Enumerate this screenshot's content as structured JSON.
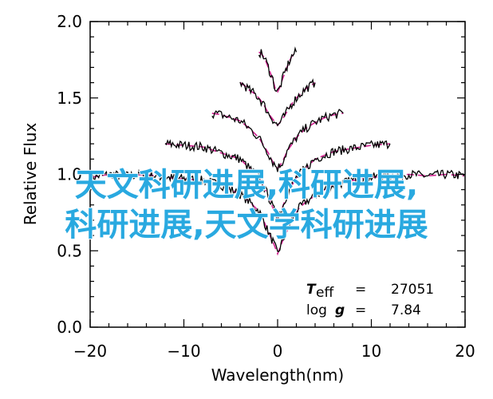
{
  "chart_data": {
    "type": "line",
    "xlabel": "Wavelength(nm)",
    "ylabel": "Relative Flux",
    "xlim": [
      -20,
      20
    ],
    "ylim": [
      0.0,
      2.0
    ],
    "x_ticks": [
      "-20",
      "-10",
      "0",
      "10",
      "20"
    ],
    "y_ticks": [
      "0.0",
      "0.5",
      "1.0",
      "1.5",
      "2.0"
    ],
    "colors": {
      "observed": "#000000",
      "model": "#d0208f",
      "overlay_text": "#29a9e0"
    },
    "series": [
      {
        "style": "observed",
        "offset": 0.0,
        "x": [
          -19.9,
          -18,
          -16,
          -14,
          -12,
          -10,
          -8,
          -6,
          -5,
          -4,
          -3,
          -2,
          -1.5,
          -1,
          -0.5,
          0,
          0.5,
          1,
          1.5,
          2,
          3,
          4,
          5,
          6,
          8,
          10,
          12,
          14,
          16,
          18,
          19.9
        ],
        "y": [
          0.98,
          1.0,
          0.99,
          1.0,
          0.98,
          0.97,
          0.96,
          0.93,
          0.9,
          0.87,
          0.82,
          0.76,
          0.7,
          0.62,
          0.56,
          0.48,
          0.56,
          0.63,
          0.7,
          0.76,
          0.82,
          0.86,
          0.9,
          0.93,
          0.96,
          0.98,
          0.99,
          1.0,
          0.99,
          1.0,
          0.99
        ]
      },
      {
        "style": "observed",
        "offset": 0.2,
        "x": [
          -12,
          -10,
          -8,
          -6,
          -4,
          -3,
          -2,
          -1,
          -0.5,
          0,
          0.5,
          1,
          2,
          3,
          4,
          6,
          8,
          10,
          12
        ],
        "y": [
          1.0,
          0.99,
          0.98,
          0.94,
          0.9,
          0.84,
          0.78,
          0.66,
          0.58,
          0.52,
          0.58,
          0.67,
          0.78,
          0.84,
          0.9,
          0.95,
          0.97,
          0.99,
          1.0
        ]
      },
      {
        "style": "observed",
        "offset": 0.4,
        "x": [
          -7,
          -6,
          -5,
          -4,
          -3,
          -2,
          -1,
          -0.5,
          0,
          0.5,
          1,
          2,
          3,
          4,
          5,
          6,
          7
        ],
        "y": [
          1.0,
          0.99,
          0.97,
          0.95,
          0.9,
          0.84,
          0.74,
          0.68,
          0.64,
          0.68,
          0.75,
          0.84,
          0.9,
          0.94,
          0.97,
          0.99,
          1.0
        ]
      },
      {
        "style": "observed",
        "offset": 0.6,
        "x": [
          -4,
          -3.5,
          -3,
          -2.5,
          -2,
          -1.5,
          -1,
          -0.5,
          0,
          0.5,
          1,
          1.5,
          2,
          2.5,
          3,
          3.5,
          4
        ],
        "y": [
          1.0,
          0.98,
          0.95,
          0.93,
          0.9,
          0.86,
          0.8,
          0.76,
          0.72,
          0.76,
          0.81,
          0.86,
          0.9,
          0.93,
          0.96,
          0.98,
          1.0
        ]
      },
      {
        "style": "observed",
        "offset": 0.8,
        "x": [
          -2,
          -1.75,
          -1.5,
          -1.25,
          -1,
          -0.75,
          -0.5,
          -0.25,
          0,
          0.25,
          0.5,
          0.75,
          1,
          1.25,
          1.5,
          1.75,
          2
        ],
        "y": [
          1.0,
          0.99,
          0.97,
          0.94,
          0.9,
          0.86,
          0.82,
          0.76,
          0.74,
          0.77,
          0.82,
          0.86,
          0.9,
          0.94,
          0.97,
          0.99,
          1.0
        ]
      }
    ],
    "annotations": {
      "teff_symbol": "T",
      "teff_subscript": "eff",
      "teff_equals": "=",
      "teff_value": "27051",
      "logg_symbol": "log",
      "logg_g": "g",
      "logg_equals": "=",
      "logg_value": "7.84"
    }
  },
  "overlay_text": {
    "line1": "天文科研进展,科研进展,",
    "line2": "科研进展,天文学科研进展"
  }
}
